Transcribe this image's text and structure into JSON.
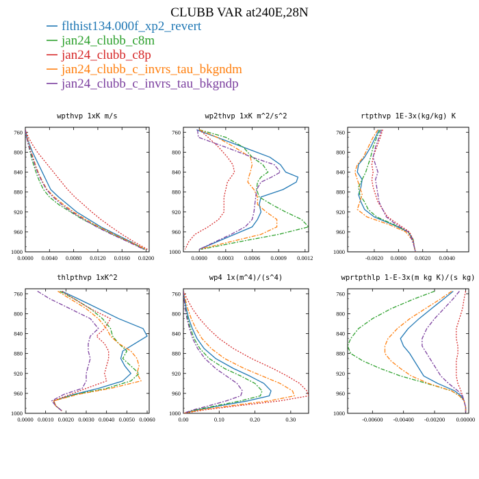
{
  "title": "CLUBB VAR at240E,28N",
  "legend": [
    {
      "label": "flthist134.000f_xp2_revert",
      "color": "#1f77b4",
      "dash": ""
    },
    {
      "label": "jan24_clubb_c8m",
      "color": "#2ca02c",
      "dash": "6,2,2,2"
    },
    {
      "label": "jan24_clubb_c8p",
      "color": "#d62728",
      "dash": "2,2"
    },
    {
      "label": "jan24_clubb_c_invrs_tau_bkgndm",
      "color": "#ff7f0e",
      "dash": "6,2,2,2"
    },
    {
      "label": "jan24_clubb_c_invrs_tau_bkgndp",
      "color": "#7b3f9e",
      "dash": "6,2,2,2"
    }
  ],
  "chart_data": [
    {
      "type": "line",
      "title": "wpthvp  1xK m/s",
      "xlim": [
        0,
        0.0205
      ],
      "ylim": [
        750,
        1000
      ],
      "xticks": [
        0.0,
        0.004,
        0.008,
        0.012,
        0.016,
        0.02
      ],
      "xtick_labels": [
        "0.0000",
        "0.0040",
        "0.0080",
        "0.0120",
        "0.0160",
        "0.0200"
      ],
      "yticks": [
        760,
        800,
        840,
        880,
        920,
        960,
        1000
      ],
      "y": [
        755,
        770,
        785,
        800,
        815,
        830,
        845,
        860,
        875,
        890,
        905,
        920,
        935,
        950,
        965,
        980,
        995
      ],
      "series": [
        {
          "name": "flthist134.000f_xp2_revert",
          "values": [
            0,
            0.0003,
            0.0007,
            0.0012,
            0.0018,
            0.0024,
            0.003,
            0.0036,
            0.0042,
            0.0055,
            0.007,
            0.0085,
            0.0105,
            0.0125,
            0.015,
            0.0175,
            0.0198
          ]
        },
        {
          "name": "jan24_clubb_c8m",
          "values": [
            0,
            0.0002,
            0.0005,
            0.0008,
            0.0011,
            0.0015,
            0.0019,
            0.0024,
            0.003,
            0.004,
            0.0055,
            0.0075,
            0.0095,
            0.012,
            0.0145,
            0.0172,
            0.0198
          ]
        },
        {
          "name": "jan24_clubb_c8p",
          "values": [
            0,
            0.0005,
            0.0012,
            0.002,
            0.003,
            0.004,
            0.005,
            0.006,
            0.007,
            0.0082,
            0.0096,
            0.011,
            0.0125,
            0.0142,
            0.016,
            0.018,
            0.0202
          ]
        },
        {
          "name": "jan24_clubb_c_invrs_tau_bkgndm",
          "values": [
            0,
            0.0003,
            0.0006,
            0.001,
            0.0014,
            0.0018,
            0.0023,
            0.0029,
            0.0036,
            0.0048,
            0.0063,
            0.008,
            0.01,
            0.0122,
            0.0147,
            0.0173,
            0.02
          ]
        },
        {
          "name": "jan24_clubb_c_invrs_tau_bkgndp",
          "values": [
            0,
            0.0002,
            0.0005,
            0.0009,
            0.0013,
            0.0017,
            0.0022,
            0.0028,
            0.0035,
            0.0046,
            0.006,
            0.0077,
            0.0097,
            0.0118,
            0.0143,
            0.017,
            0.0196
          ]
        }
      ]
    },
    {
      "type": "line",
      "title": "wp2thvp  1xK m^2/s^2",
      "xlim": [
        -0.00018,
        0.00124
      ],
      "ylim": [
        750,
        1000
      ],
      "xticks": [
        0.0,
        0.0003,
        0.0006,
        0.0009,
        0.0012
      ],
      "xtick_labels": [
        "0.0000",
        "0.0003",
        "0.0006",
        "0.0009",
        "0.0012"
      ],
      "yticks": [
        760,
        800,
        840,
        880,
        920,
        960,
        1000
      ],
      "y": [
        755,
        770,
        790,
        810,
        825,
        840,
        850,
        860,
        875,
        890,
        905,
        920,
        935,
        950,
        965,
        980,
        995
      ],
      "series": [
        {
          "name": "flthist134.000f_xp2_revert",
          "values": [
            -3e-05,
            0.0002,
            0.0005,
            0.0008,
            0.00092,
            0.00098,
            0.00112,
            0.0011,
            0.00095,
            0.0007,
            0.00068,
            0.0007,
            0.00066,
            0.0006,
            0.0004,
            0.0002,
            0.0
          ]
        },
        {
          "name": "jan24_clubb_c8m",
          "values": [
            0.0,
            0.0003,
            0.0005,
            0.0006,
            0.00072,
            0.00078,
            0.0007,
            0.00066,
            0.00065,
            0.00068,
            0.00082,
            0.00098,
            0.00116,
            0.00124,
            0.0009,
            0.00045,
            2e-05
          ]
        },
        {
          "name": "jan24_clubb_c8p",
          "values": [
            0.0,
            0.0001,
            0.00022,
            0.00032,
            0.00038,
            0.0004,
            0.00036,
            0.00032,
            0.0003,
            0.00028,
            0.00028,
            0.00028,
            0.00022,
            0.0001,
            -5e-05,
            -0.00012,
            -0.00016
          ]
        },
        {
          "name": "jan24_clubb_c_invrs_tau_bkgndm",
          "values": [
            0.0,
            0.0002,
            0.0004,
            0.00058,
            0.0006,
            0.00058,
            0.00056,
            0.00055,
            0.00062,
            0.00066,
            0.00066,
            0.00076,
            0.00088,
            0.00088,
            0.0007,
            0.00035,
            0.0
          ]
        },
        {
          "name": "jan24_clubb_c_invrs_tau_bkgndp",
          "values": [
            -2e-05,
            -1e-05,
            0.0003,
            0.0006,
            0.00085,
            0.00092,
            0.00082,
            0.0007,
            0.00065,
            0.00064,
            0.00063,
            0.00062,
            0.0006,
            0.00052,
            0.00036,
            0.00018,
            0.0
          ]
        }
      ]
    },
    {
      "type": "line",
      "title": "rtpthvp  1E-3x(kg/kg) K",
      "xlim": [
        -0.0042,
        0.0058
      ],
      "ylim": [
        750,
        1000
      ],
      "xticks": [
        -0.002,
        0.0,
        0.002,
        0.004
      ],
      "xtick_labels": [
        "-0.0020",
        "0.0000",
        "0.0020",
        "0.0040"
      ],
      "yticks": [
        760,
        800,
        840,
        880,
        920,
        960,
        1000
      ],
      "y": [
        755,
        770,
        790,
        810,
        825,
        840,
        855,
        870,
        885,
        900,
        915,
        930,
        945,
        960,
        975,
        990,
        1000
      ],
      "series": [
        {
          "name": "flthist134.000f_xp2_revert",
          "values": [
            -0.0016,
            -0.0019,
            -0.0023,
            -0.0028,
            -0.0033,
            -0.0034,
            -0.003,
            -0.0031,
            -0.0033,
            -0.0031,
            -0.0028,
            -0.002,
            -0.0005,
            0.0008,
            0.0012,
            0.0013,
            0.0014
          ]
        },
        {
          "name": "jan24_clubb_c8m",
          "values": [
            -0.0015,
            -0.0018,
            -0.0021,
            -0.0023,
            -0.0025,
            -0.0027,
            -0.003,
            -0.0033,
            -0.0032,
            -0.0028,
            -0.0025,
            -0.0018,
            -0.0004,
            0.0008,
            0.0012,
            0.0013,
            0.0014
          ]
        },
        {
          "name": "jan24_clubb_c8p",
          "values": [
            -0.0013,
            -0.0015,
            -0.0018,
            -0.0021,
            -0.0022,
            -0.0021,
            -0.0022,
            -0.0021,
            -0.0019,
            -0.0017,
            -0.0013,
            -0.0009,
            0.0,
            0.0009,
            0.0012,
            0.0013,
            0.0014
          ]
        },
        {
          "name": "jan24_clubb_c_invrs_tau_bkgndm",
          "values": [
            -0.0017,
            -0.0021,
            -0.0025,
            -0.0029,
            -0.0034,
            -0.0036,
            -0.0034,
            -0.0032,
            -0.003,
            -0.0032,
            -0.0034,
            -0.0026,
            -0.0008,
            0.0006,
            0.0011,
            0.0013,
            0.0014
          ]
        },
        {
          "name": "jan24_clubb_c_invrs_tau_bkgndp",
          "values": [
            -0.0014,
            -0.0016,
            -0.0019,
            -0.0021,
            -0.0019,
            -0.0017,
            -0.0019,
            -0.0018,
            -0.0017,
            -0.0016,
            -0.0013,
            -0.001,
            -0.0002,
            0.0008,
            0.0011,
            0.0013,
            0.0014
          ]
        }
      ]
    },
    {
      "type": "line",
      "title": "thlpthvp  1xK^2",
      "xlim": [
        0.0,
        0.0061
      ],
      "ylim": [
        750,
        1000
      ],
      "xticks": [
        0.0,
        0.001,
        0.002,
        0.003,
        0.004,
        0.005,
        0.006
      ],
      "xtick_labels": [
        "0.0000",
        "0.0010",
        "0.0020",
        "0.0030",
        "0.0040",
        "0.0050",
        "0.0060"
      ],
      "yticks": [
        760,
        800,
        840,
        880,
        920,
        960,
        1000
      ],
      "y": [
        755,
        770,
        790,
        810,
        830,
        845,
        860,
        875,
        890,
        905,
        920,
        935,
        950,
        962,
        975,
        985,
        995
      ],
      "series": [
        {
          "name": "flthist134.000f_xp2_revert",
          "values": [
            0.0018,
            0.0026,
            0.0036,
            0.0046,
            0.0058,
            0.006,
            0.0054,
            0.0048,
            0.0047,
            0.0049,
            0.0052,
            0.0048,
            0.0036,
            0.0024,
            0.0014,
            0.0015,
            0.0018
          ]
        },
        {
          "name": "jan24_clubb_c8m",
          "values": [
            0.0017,
            0.0024,
            0.0032,
            0.0038,
            0.0042,
            0.0043,
            0.0046,
            0.005,
            0.0048,
            0.0052,
            0.0056,
            0.0052,
            0.004,
            0.0025,
            0.0014,
            0.0015,
            0.0018
          ]
        },
        {
          "name": "jan24_clubb_c8p",
          "values": [
            0.0018,
            0.0024,
            0.0032,
            0.0042,
            0.0039,
            0.0035,
            0.0039,
            0.0041,
            0.0041,
            0.004,
            0.0039,
            0.004,
            0.003,
            0.0022,
            0.0014,
            0.0015,
            0.0018
          ]
        },
        {
          "name": "jan24_clubb_c_invrs_tau_bkgndm",
          "values": [
            0.0016,
            0.0022,
            0.003,
            0.0036,
            0.004,
            0.0042,
            0.0046,
            0.0052,
            0.0055,
            0.0056,
            0.0055,
            0.0057,
            0.0042,
            0.0026,
            0.0014,
            0.0015,
            0.0018
          ]
        },
        {
          "name": "jan24_clubb_c_invrs_tau_bkgndp",
          "values": [
            0.0006,
            0.0012,
            0.0022,
            0.0032,
            0.0036,
            0.0032,
            0.0031,
            0.0031,
            0.0032,
            0.0031,
            0.003,
            0.003,
            0.0028,
            0.0019,
            0.0013,
            0.0015,
            0.0018
          ]
        }
      ]
    },
    {
      "type": "line",
      "title": "wp4  1x(m^4)/(s^4)",
      "xlim": [
        0.0,
        0.35
      ],
      "ylim": [
        750,
        1000
      ],
      "xticks": [
        0.0,
        0.1,
        0.2,
        0.3
      ],
      "xtick_labels": [
        "0.00",
        "0.10",
        "0.20",
        "0.30"
      ],
      "yticks": [
        760,
        800,
        840,
        880,
        920,
        960,
        1000
      ],
      "y": [
        755,
        770,
        790,
        810,
        830,
        850,
        870,
        890,
        910,
        925,
        940,
        955,
        965,
        975,
        985,
        993,
        1000
      ],
      "series": [
        {
          "name": "flthist134.000f_xp2_revert",
          "values": [
            0.0,
            0.003,
            0.008,
            0.015,
            0.025,
            0.038,
            0.058,
            0.09,
            0.14,
            0.185,
            0.225,
            0.245,
            0.24,
            0.18,
            0.1,
            0.04,
            0.0
          ]
        },
        {
          "name": "jan24_clubb_c8m",
          "values": [
            0.0,
            0.002,
            0.006,
            0.012,
            0.02,
            0.03,
            0.046,
            0.072,
            0.115,
            0.16,
            0.2,
            0.22,
            0.215,
            0.16,
            0.09,
            0.035,
            0.0
          ]
        },
        {
          "name": "jan24_clubb_c8p",
          "values": [
            0.0,
            0.01,
            0.025,
            0.045,
            0.07,
            0.1,
            0.14,
            0.19,
            0.25,
            0.29,
            0.325,
            0.345,
            0.35,
            0.27,
            0.15,
            0.06,
            0.0
          ]
        },
        {
          "name": "jan24_clubb_c_invrs_tau_bkgndm",
          "values": [
            0.0,
            0.005,
            0.012,
            0.022,
            0.035,
            0.052,
            0.078,
            0.115,
            0.17,
            0.22,
            0.27,
            0.305,
            0.31,
            0.24,
            0.13,
            0.05,
            0.0
          ]
        },
        {
          "name": "jan24_clubb_c_invrs_tau_bkgndp",
          "values": [
            0.0,
            0.002,
            0.005,
            0.01,
            0.017,
            0.026,
            0.04,
            0.06,
            0.09,
            0.12,
            0.15,
            0.165,
            0.16,
            0.12,
            0.07,
            0.028,
            0.0
          ]
        }
      ]
    },
    {
      "type": "line",
      "title": "wprtpthlp  1-E-3x(m kg K)/(s kg)",
      "xlim": [
        -0.0076,
        0.0002
      ],
      "ylim": [
        750,
        1000
      ],
      "xticks": [
        -0.006,
        -0.004,
        -0.002,
        0.0
      ],
      "xtick_labels": [
        "-0.00600",
        "-0.00400",
        "-0.00200",
        "0.00000"
      ],
      "yticks": [
        760,
        800,
        840,
        880,
        920,
        960,
        1000
      ],
      "y": [
        755,
        770,
        790,
        810,
        830,
        850,
        865,
        880,
        895,
        910,
        925,
        940,
        955,
        965,
        975,
        988,
        998
      ],
      "series": [
        {
          "name": "flthist134.000f_xp2_revert",
          "values": [
            -0.0008,
            -0.0014,
            -0.0022,
            -0.003,
            -0.0037,
            -0.0042,
            -0.004,
            -0.0036,
            -0.0033,
            -0.003,
            -0.0027,
            -0.0018,
            -0.0007,
            -0.0003,
            -0.0001,
            0.0,
            0.0
          ]
        },
        {
          "name": "jan24_clubb_c8m",
          "values": [
            -0.002,
            -0.0033,
            -0.0048,
            -0.006,
            -0.0069,
            -0.0074,
            -0.0076,
            -0.0074,
            -0.0066,
            -0.0055,
            -0.0042,
            -0.0025,
            -0.0009,
            -0.0004,
            -0.0001,
            0.0,
            0.0
          ]
        },
        {
          "name": "jan24_clubb_c8p",
          "values": [
            0.0,
            -0.0001,
            -0.0002,
            -0.0004,
            -0.0006,
            -0.0006,
            -0.0005,
            -0.0005,
            -0.0006,
            -0.0006,
            -0.0006,
            -0.0005,
            -0.0003,
            -0.0002,
            -0.0001,
            0.0,
            0.0
          ]
        },
        {
          "name": "jan24_clubb_c_invrs_tau_bkgndm",
          "values": [
            -0.0009,
            -0.0016,
            -0.0026,
            -0.0036,
            -0.0044,
            -0.005,
            -0.0052,
            -0.0052,
            -0.0048,
            -0.0042,
            -0.0035,
            -0.0024,
            -0.0009,
            -0.0004,
            -0.0001,
            0.0,
            0.0
          ]
        },
        {
          "name": "jan24_clubb_c_invrs_tau_bkgndp",
          "values": [
            -0.0004,
            -0.0008,
            -0.0014,
            -0.002,
            -0.0025,
            -0.0028,
            -0.0028,
            -0.0025,
            -0.0022,
            -0.0019,
            -0.0016,
            -0.0011,
            -0.0005,
            -0.0002,
            -0.0001,
            0.0,
            0.0
          ]
        }
      ]
    }
  ]
}
